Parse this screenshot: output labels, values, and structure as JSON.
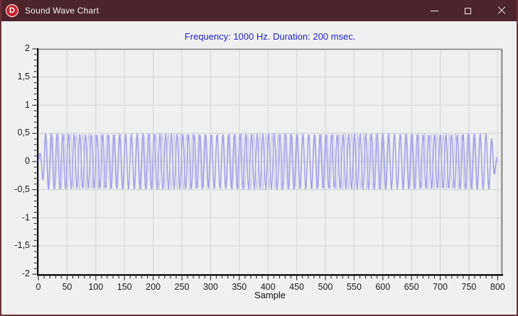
{
  "window": {
    "title": "Sound Wave Chart",
    "app_icon": "D",
    "controls": {
      "minimize": "minimize",
      "maximize": "maximize",
      "close": "close"
    }
  },
  "chart_data": {
    "type": "line",
    "title": "Frequency: 1000 Hz. Duration: 200 msec.",
    "xlabel": "Sample",
    "ylabel": "",
    "signal": {
      "waveform": "sine",
      "frequency_hz": 1000,
      "duration_ms": 200,
      "amplitude": 0.5,
      "n_samples": 800
    },
    "xlim": [
      0,
      807
    ],
    "ylim": [
      -2,
      2
    ],
    "x_ticks": [
      0,
      50,
      100,
      150,
      200,
      250,
      300,
      350,
      400,
      450,
      500,
      550,
      600,
      650,
      700,
      750,
      800
    ],
    "x_minor_step": 10,
    "y_ticks": [
      {
        "label": "2",
        "value": 2
      },
      {
        "label": "1,5",
        "value": 1.5
      },
      {
        "label": "1",
        "value": 1
      },
      {
        "label": "0,5",
        "value": 0.5
      },
      {
        "label": "0",
        "value": 0
      },
      {
        "label": "-0,5",
        "value": -0.5
      },
      {
        "label": "-1",
        "value": -1
      },
      {
        "label": "-1,5",
        "value": -1.5
      },
      {
        "label": "-2",
        "value": -2
      }
    ],
    "y_minor_step": 0.1,
    "grid": true,
    "colors": {
      "series": "#9b9be9",
      "title": "#2222cc",
      "grid": "#d9d9d9",
      "plot_bg": "#efefef",
      "frame": "#7d7d7d",
      "axis": "#000000",
      "tick": "#222222"
    }
  },
  "theme": {
    "titlebar_bg": "#4c242b",
    "titlebar_fg": "#f2f2f2",
    "border": "#6e2f38",
    "body_bg": "#f0f0f0",
    "icon_red": "#c5262e"
  }
}
